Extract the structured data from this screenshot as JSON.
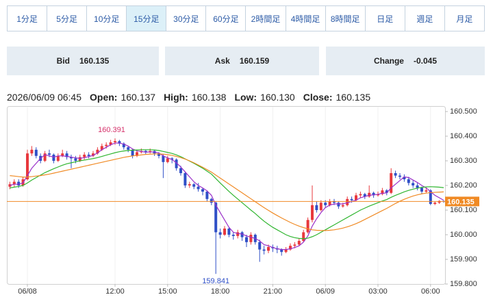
{
  "tabs": [
    "1分足",
    "5分足",
    "10分足",
    "15分足",
    "30分足",
    "60分足",
    "2時間足",
    "4時間足",
    "8時間足",
    "日足",
    "週足",
    "月足"
  ],
  "quotes": [
    {
      "label": "Bid",
      "value": 160.135
    },
    {
      "label": "Ask",
      "value": 160.159
    },
    {
      "label": "Change",
      "value": -0.045
    }
  ],
  "ohlc_info": {
    "time": "2026/06/09 06:45",
    "items": [
      {
        "label": "Open:",
        "value": 160.137
      },
      {
        "label": "High:",
        "value": 160.138
      },
      {
        "label": "Low:",
        "value": 160.13,
        "value_label": "160.130"
      },
      {
        "label": "Close:",
        "value": 160.135
      }
    ]
  },
  "chart_data": {
    "type": "candlestick",
    "up_color": "#e8383d",
    "down_color": "#2f4fc7",
    "categories": [
      null,
      null,
      null,
      null,
      "06/08",
      null,
      null,
      null,
      null,
      null,
      null,
      null,
      null,
      null,
      null,
      null,
      null,
      null,
      null,
      null,
      null,
      null,
      null,
      null,
      "12:00",
      null,
      null,
      null,
      null,
      null,
      null,
      null,
      null,
      null,
      null,
      null,
      "15:00",
      null,
      null,
      null,
      null,
      null,
      null,
      null,
      null,
      null,
      null,
      null,
      "18:00",
      null,
      null,
      null,
      null,
      null,
      null,
      null,
      null,
      null,
      null,
      null,
      "21:00",
      null,
      null,
      null,
      null,
      null,
      null,
      null,
      null,
      null,
      null,
      null,
      "06/09",
      null,
      null,
      null,
      null,
      null,
      null,
      null,
      null,
      null,
      null,
      null,
      "03:00",
      null,
      null,
      null,
      null,
      null,
      null,
      null,
      null,
      null,
      null,
      null,
      "06:00",
      null,
      null,
      null
    ],
    "open": [
      160.195,
      160.205,
      160.215,
      160.2,
      160.225,
      160.33,
      160.345,
      160.32,
      160.3,
      160.33,
      160.325,
      160.3,
      160.32,
      160.33,
      160.315,
      160.31,
      160.3,
      160.315,
      160.325,
      160.32,
      160.33,
      160.345,
      160.36,
      160.365,
      160.375,
      160.38,
      160.37,
      160.355,
      160.345,
      160.32,
      160.335,
      160.34,
      160.335,
      160.34,
      160.33,
      160.32,
      160.295,
      160.31,
      160.305,
      160.27,
      160.25,
      160.2,
      160.205,
      160.195,
      160.185,
      160.175,
      160.145,
      160.13,
      160.01,
      160,
      160.025,
      160,
      159.995,
      160.01,
      159.99,
      159.97,
      160,
      159.97,
      159.94,
      159.935,
      159.95,
      159.945,
      159.94,
      159.93,
      159.94,
      159.955,
      159.96,
      159.975,
      160.01,
      160.06,
      160.12,
      160.1,
      160.13,
      160.12,
      160.135,
      160.13,
      160.115,
      160.12,
      160.145,
      160.14,
      160.16,
      160.165,
      160.155,
      160.17,
      160.16,
      160.165,
      160.18,
      160.17,
      160.25,
      160.24,
      160.235,
      160.225,
      160.21,
      160.2,
      160.19,
      160.175,
      160.18,
      160.125,
      160.13,
      160.137
    ],
    "high": [
      160.215,
      160.225,
      160.225,
      160.235,
      160.345,
      160.36,
      160.355,
      160.33,
      160.34,
      160.345,
      160.33,
      160.33,
      160.345,
      160.34,
      160.325,
      160.32,
      160.325,
      160.335,
      160.335,
      160.34,
      160.355,
      160.37,
      160.375,
      160.385,
      160.391,
      160.385,
      160.375,
      160.36,
      160.35,
      160.345,
      160.35,
      160.345,
      160.35,
      160.345,
      160.335,
      160.325,
      160.32,
      160.315,
      160.31,
      160.28,
      160.255,
      160.215,
      160.21,
      160.21,
      160.19,
      160.18,
      160.15,
      160.135,
      160.025,
      160.035,
      160.03,
      160.01,
      160.02,
      160.015,
      160,
      160.01,
      160.005,
      159.98,
      159.955,
      159.96,
      159.96,
      159.955,
      159.945,
      159.95,
      159.965,
      159.97,
      159.985,
      160.02,
      160.07,
      160.2,
      160.135,
      160.14,
      160.14,
      160.145,
      160.145,
      160.135,
      160.13,
      160.155,
      160.155,
      160.17,
      160.175,
      160.17,
      160.2,
      160.175,
      160.175,
      160.19,
      160.185,
      160.27,
      160.26,
      160.25,
      160.245,
      160.235,
      160.22,
      160.21,
      160.195,
      160.19,
      160.185,
      160.135,
      160.14,
      160.138
    ],
    "low": [
      160.185,
      160.195,
      160.19,
      160.195,
      160.22,
      160.32,
      160.31,
      160.29,
      160.295,
      160.315,
      160.29,
      160.295,
      160.315,
      160.305,
      160.27,
      160.29,
      160.295,
      160.305,
      160.31,
      160.315,
      160.325,
      160.34,
      160.35,
      160.36,
      160.365,
      160.36,
      160.345,
      160.335,
      160.31,
      160.315,
      160.33,
      160.325,
      160.33,
      160.32,
      160.31,
      160.23,
      160.29,
      160.29,
      160.26,
      160.24,
      160.19,
      160.19,
      160.185,
      160.175,
      160.16,
      160.135,
      160.12,
      159.841,
      159.985,
      159.995,
      159.99,
      159.98,
      159.985,
      159.975,
      159.95,
      159.96,
      159.96,
      159.89,
      159.92,
      159.925,
      159.93,
      159.925,
      159.915,
      159.925,
      159.935,
      159.945,
      159.955,
      159.97,
      160.005,
      160.05,
      160.09,
      160.095,
      160.11,
      160.115,
      160.12,
      160.105,
      160.11,
      160.115,
      160.13,
      160.135,
      160.15,
      160.145,
      160.15,
      160.15,
      160.155,
      160.16,
      160.16,
      160.165,
      160.23,
      160.225,
      160.215,
      160.2,
      160.19,
      160.18,
      160.165,
      160.17,
      160.12,
      160.12,
      160.125,
      160.13
    ],
    "close": [
      160.205,
      160.215,
      160.2,
      160.225,
      160.33,
      160.345,
      160.32,
      160.3,
      160.33,
      160.325,
      160.3,
      160.32,
      160.33,
      160.315,
      160.31,
      160.3,
      160.315,
      160.325,
      160.32,
      160.33,
      160.345,
      160.36,
      160.365,
      160.375,
      160.38,
      160.37,
      160.355,
      160.345,
      160.32,
      160.335,
      160.34,
      160.335,
      160.34,
      160.33,
      160.32,
      160.295,
      160.31,
      160.305,
      160.27,
      160.25,
      160.2,
      160.205,
      160.195,
      160.185,
      160.175,
      160.145,
      160.13,
      160.01,
      160,
      160.025,
      160,
      159.995,
      160.01,
      159.99,
      159.97,
      160,
      159.97,
      159.94,
      159.935,
      159.95,
      159.945,
      159.94,
      159.93,
      159.94,
      159.955,
      159.96,
      159.975,
      160.01,
      160.06,
      160.12,
      160.1,
      160.13,
      160.12,
      160.135,
      160.13,
      160.115,
      160.12,
      160.145,
      160.14,
      160.16,
      160.165,
      160.155,
      160.17,
      160.16,
      160.165,
      160.18,
      160.17,
      160.25,
      160.24,
      160.235,
      160.225,
      160.21,
      160.2,
      160.19,
      160.175,
      160.18,
      160.125,
      160.13,
      160.137,
      160.135
    ],
    "lines": [
      {
        "color": "#9a2fc9",
        "values": [
          160.2,
          160.205,
          160.205,
          160.21,
          160.24,
          160.27,
          160.29,
          160.31,
          160.325,
          160.32,
          160.315,
          160.32,
          160.32,
          160.318,
          160.315,
          160.312,
          160.31,
          160.313,
          160.317,
          160.322,
          160.332,
          160.345,
          160.355,
          160.365,
          160.372,
          160.372,
          160.368,
          160.36,
          160.348,
          160.34,
          160.338,
          160.335,
          160.336,
          160.336,
          160.332,
          160.32,
          160.312,
          160.305,
          160.292,
          160.275,
          160.255,
          160.235,
          160.215,
          160.2,
          160.19,
          160.178,
          160.16,
          160.12,
          160.09,
          160.06,
          160.03,
          160.01,
          160.005,
          160.003,
          159.995,
          159.99,
          159.985,
          159.975,
          159.96,
          159.955,
          159.948,
          159.943,
          159.94,
          159.94,
          159.943,
          159.948,
          159.955,
          159.97,
          159.995,
          160.035,
          160.065,
          160.09,
          160.11,
          160.12,
          160.125,
          160.125,
          160.125,
          160.13,
          160.135,
          160.14,
          160.15,
          160.155,
          160.16,
          160.162,
          160.164,
          160.168,
          160.17,
          160.19,
          160.205,
          160.22,
          160.235,
          160.232,
          160.222,
          160.212,
          160.2,
          160.19,
          160.175,
          160.16,
          160.15,
          160.14
        ]
      },
      {
        "color": "#2fb52f",
        "values": [
          160.19,
          160.193,
          160.196,
          160.2,
          160.21,
          160.222,
          160.232,
          160.242,
          160.252,
          160.26,
          160.268,
          160.275,
          160.282,
          160.288,
          160.292,
          160.296,
          160.3,
          160.303,
          160.306,
          160.309,
          160.313,
          160.318,
          160.323,
          160.328,
          160.333,
          160.337,
          160.34,
          160.342,
          160.343,
          160.344,
          160.345,
          160.345,
          160.345,
          160.344,
          160.342,
          160.338,
          160.334,
          160.33,
          160.324,
          160.317,
          160.308,
          160.299,
          160.29,
          160.28,
          160.27,
          160.258,
          160.246,
          160.228,
          160.21,
          160.193,
          160.176,
          160.16,
          160.145,
          160.13,
          160.115,
          160.1,
          160.086,
          160.07,
          160.055,
          160.042,
          160.03,
          160.02,
          160.01,
          160,
          159.993,
          159.988,
          159.985,
          159.984,
          159.986,
          159.992,
          160,
          160.01,
          160.02,
          160.03,
          160.04,
          160.05,
          160.06,
          160.07,
          160.08,
          160.09,
          160.1,
          160.108,
          160.116,
          160.123,
          160.13,
          160.137,
          160.143,
          160.152,
          160.16,
          160.167,
          160.174,
          160.18,
          160.185,
          160.189,
          160.192,
          160.194,
          160.195,
          160.194,
          160.193,
          160.191
        ]
      },
      {
        "color": "#f08a24",
        "values": [
          160.24,
          160.238,
          160.236,
          160.234,
          160.234,
          160.236,
          160.238,
          160.24,
          160.243,
          160.246,
          160.25,
          160.254,
          160.258,
          160.262,
          160.266,
          160.27,
          160.274,
          160.278,
          160.282,
          160.286,
          160.29,
          160.294,
          160.298,
          160.302,
          160.306,
          160.31,
          160.314,
          160.317,
          160.32,
          160.322,
          160.324,
          160.326,
          160.327,
          160.328,
          160.328,
          160.327,
          160.325,
          160.322,
          160.318,
          160.313,
          160.307,
          160.3,
          160.292,
          160.283,
          160.274,
          160.264,
          160.254,
          160.242,
          160.23,
          160.218,
          160.206,
          160.194,
          160.182,
          160.17,
          160.158,
          160.146,
          160.134,
          160.122,
          160.11,
          160.099,
          160.088,
          160.078,
          160.068,
          160.059,
          160.05,
          160.042,
          160.035,
          160.029,
          160.024,
          160.02,
          160.018,
          160.017,
          160.017,
          160.018,
          160.02,
          160.023,
          160.027,
          160.032,
          160.038,
          160.045,
          160.053,
          160.062,
          160.071,
          160.08,
          160.089,
          160.098,
          160.107,
          160.117,
          160.127,
          160.136,
          160.144,
          160.151,
          160.157,
          160.162,
          160.166,
          160.169,
          160.171,
          160.172,
          160.173,
          160.174
        ]
      }
    ],
    "max_label": 160.391,
    "max_label_color": "#d6336c",
    "min_label": 159.841,
    "min_label_color": "#2f4fc7",
    "last": 160.135,
    "last_color": "#f08a24",
    "ylim": [
      159.8,
      160.5
    ],
    "yticks": [
      {
        "value": 159.8,
        "label": "159.800"
      },
      {
        "value": 159.9,
        "label": "159.900"
      },
      {
        "value": 160,
        "label": "160.000"
      },
      {
        "value": 160.1,
        "label": "160.100"
      },
      {
        "value": 160.2,
        "label": "160.200"
      },
      {
        "value": 160.3,
        "label": "160.300"
      },
      {
        "value": 160.4,
        "label": "160.400"
      },
      {
        "value": 160.5,
        "label": "160.500"
      }
    ],
    "grid": "x"
  }
}
